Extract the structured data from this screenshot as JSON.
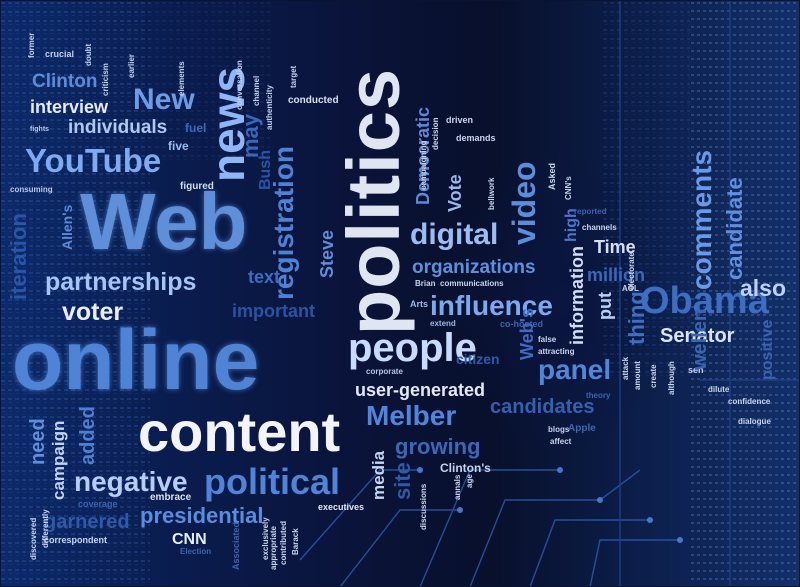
{
  "words": {
    "politics": "politics",
    "web": "Web",
    "online": "online",
    "content": "content",
    "people": "people",
    "youtube": "YouTube",
    "news": "news",
    "new": "New",
    "registration": "registration",
    "partnerships": "partnerships",
    "voter": "voter",
    "political": "political",
    "negative": "negative",
    "melber": "Melber",
    "influence": "influence",
    "digital": "digital",
    "organizations": "organizations",
    "video": "video",
    "comments": "comments",
    "candidate": "candidate",
    "obama": "Obama",
    "also": "also",
    "senator": "Senator",
    "time": "Time",
    "million": "million",
    "information": "information",
    "panel": "panel",
    "put": "put",
    "thing": "thing",
    "user_generated": "user-generated",
    "candidates": "candidates",
    "growing": "growing",
    "media": "media",
    "site": "site",
    "presidential": "presidential",
    "campaign": "campaign",
    "need": "need",
    "added": "added",
    "garnered": "garnered",
    "cnn": "CNN",
    "clinton": "Clinton",
    "interview": "interview",
    "individuals": "individuals",
    "figured": "figured",
    "text": "text",
    "important": "important",
    "steve": "Steve",
    "conducted": "conducted",
    "democratic": "Democratic",
    "vote": "Vote",
    "executives": "executives",
    "embrace": "embrace",
    "webs": "Web's",
    "citizen": "citizen",
    "apple": "Apple",
    "clintons": "Clinton's",
    "five": "five",
    "may": "may",
    "bush": "Bush",
    "allens": "Allen's",
    "iteration": "iteration",
    "fuel": "fuel",
    "crucial": "crucial",
    "former": "former",
    "doubt": "doubt",
    "criticism": "criticism",
    "earlier": "earlier",
    "elements": "elements",
    "conversation": "conversation",
    "channel": "channel",
    "authenticity": "authenticity",
    "target": "target",
    "driven": "driven",
    "demands": "demands",
    "decision": "decision",
    "campaigning": "campaigning",
    "high": "high",
    "asked": "Asked",
    "cnns": "CNN's",
    "channels": "channels",
    "electorate": "electorate",
    "consuming": "consuming",
    "fights": "fights",
    "reported": "reported",
    "co_hosted": "co-hosted",
    "extend": "extend",
    "communications": "communications",
    "brian": "Brian",
    "aol": "AOL",
    "corporate": "corporate",
    "attracting": "attracting",
    "false": "false",
    "attack": "attack",
    "amount": "amount",
    "create": "create",
    "although": "although",
    "sen": "sen",
    "theory": "theory",
    "dilute": "dilute",
    "confidence": "confidence",
    "dialogue": "dialogue",
    "positive": "positive",
    "affect": "affect",
    "blogs": "blogs",
    "election": "Election",
    "barack": "Barack",
    "associated": "Associated",
    "exclusively": "exclusively",
    "appropriate": "appropriate",
    "contributed": "contributed",
    "correspondent": "correspondent",
    "coverage": "coverage",
    "different": "differently",
    "discovered": "discovered",
    "discussions": "discussions",
    "annals": "annals",
    "age": "age",
    "arts": "Arts",
    "bellwork": "bellwork",
    "wellen": "wellen"
  },
  "colors": {
    "bright": "#f2f4f8",
    "light_blue": "#9fc2ff",
    "mid_blue": "#5d90e0",
    "dark_blue": "#3560b0",
    "background": "#070d22"
  }
}
